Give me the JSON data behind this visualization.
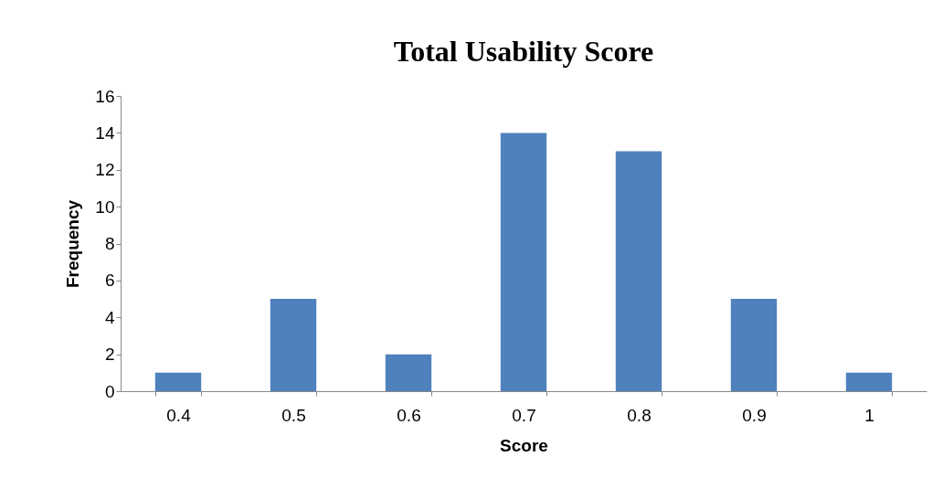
{
  "chart_data": {
    "type": "bar",
    "title": "Total Usability Score",
    "xlabel": "Score",
    "ylabel": "Frequency",
    "categories": [
      "0.4",
      "0.5",
      "0.6",
      "0.7",
      "0.8",
      "0.9",
      "1"
    ],
    "values": [
      1,
      5,
      2,
      14,
      13,
      5,
      1
    ],
    "color": "#4f81bd",
    "ylim": [
      0,
      16
    ],
    "yticks": [
      0,
      2,
      4,
      6,
      8,
      10,
      12,
      14,
      16
    ],
    "grid": false
  }
}
